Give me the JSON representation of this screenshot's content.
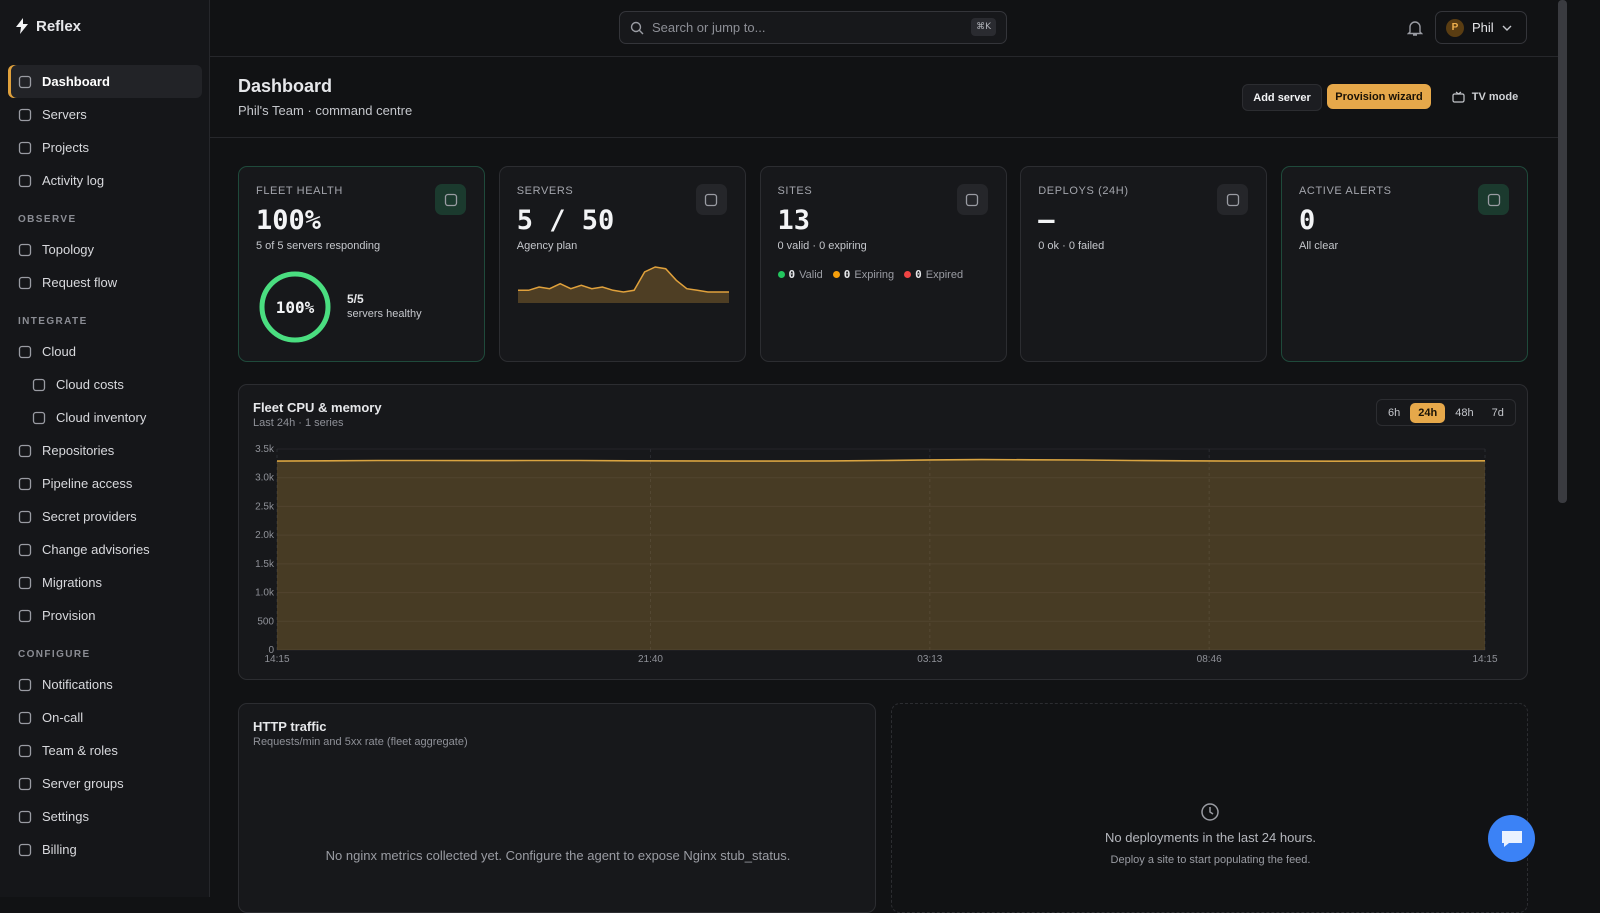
{
  "sidebar": {
    "brand": "Reflex",
    "active_index": 0,
    "main": [
      "Dashboard",
      "Servers",
      "Projects",
      "Activity log"
    ],
    "groups": [
      {
        "title": "OBSERVE",
        "items": [
          {
            "label": "Topology"
          },
          {
            "label": "Request flow"
          }
        ]
      },
      {
        "title": "INTEGRATE",
        "items": [
          {
            "label": "Cloud",
            "children": [
              "Cloud costs",
              "Cloud inventory"
            ]
          },
          {
            "label": "Repositories"
          },
          {
            "label": "Pipeline access"
          },
          {
            "label": "Secret providers"
          },
          {
            "label": "Change advisories"
          },
          {
            "label": "Migrations"
          },
          {
            "label": "Provision"
          }
        ]
      },
      {
        "title": "CONFIGURE",
        "items": [
          {
            "label": "Notifications"
          },
          {
            "label": "On-call"
          },
          {
            "label": "Team & roles"
          },
          {
            "label": "Server groups"
          },
          {
            "label": "Settings"
          },
          {
            "label": "Billing"
          }
        ]
      }
    ]
  },
  "topbar": {
    "search_placeholder": "Search or jump to...",
    "shortcut": "⌘K",
    "user_initial": "P",
    "user_name": "Phil"
  },
  "header": {
    "title": "Dashboard",
    "subtitle": "Phil's Team · command centre",
    "buttons": [
      "Add server",
      "Provision wizard",
      "TV mode"
    ]
  },
  "cards": [
    {
      "label": "FLEET HEALTH",
      "value": "100%",
      "sub": "5 of 5 servers responding",
      "border_color": "#1f4a3b",
      "gauge": {
        "value": 100,
        "value_label": "100%",
        "count": "5/5",
        "caption": "servers healthy",
        "color": "#4ade80"
      }
    },
    {
      "label": "SERVERS",
      "value": "5 / 50",
      "sub": "Agency plan",
      "border_color": "#2c2d31",
      "sparkline": {
        "color": "#e0a13c",
        "values": [
          2,
          2,
          3,
          2.5,
          4,
          2.5,
          3.5,
          2.5,
          3,
          2,
          1.5,
          2,
          7.5,
          9,
          8.5,
          5,
          2.5,
          2,
          1.5,
          1.5,
          1.5
        ]
      }
    },
    {
      "label": "SITES",
      "value": "13",
      "sub": "0 valid · 0 expiring",
      "border_color": "#2c2d31",
      "legend": [
        {
          "count": "0",
          "label": "Valid",
          "color": "#22c55e"
        },
        {
          "count": "0",
          "label": "Expiring",
          "color": "#f59e0b"
        },
        {
          "count": "0",
          "label": "Expired",
          "color": "#ef4444"
        }
      ]
    },
    {
      "label": "DEPLOYS (24H)",
      "value": "—",
      "sub": "0 ok · 0 failed",
      "border_color": "#2c2d31"
    },
    {
      "label": "ACTIVE ALERTS",
      "value": "0",
      "sub": "All clear",
      "border_color": "#1f4a3b"
    }
  ],
  "cpu_panel": {
    "ranges": [
      "6h",
      "24h",
      "48h",
      "7d"
    ],
    "active_range_index": 1
  },
  "chart_data": {
    "type": "area",
    "title": "Fleet CPU & memory",
    "subtitle": "Last 24h · 1 series",
    "color": "#d9a441",
    "x": [
      0,
      1,
      2,
      3,
      4,
      5,
      6,
      7,
      8,
      9,
      10,
      11,
      12,
      13,
      14,
      15,
      16,
      17,
      18,
      19,
      20,
      21,
      22,
      23,
      24
    ],
    "values": [
      3290,
      3295,
      3300,
      3300,
      3298,
      3300,
      3300,
      3295,
      3292,
      3290,
      3290,
      3292,
      3300,
      3310,
      3315,
      3312,
      3308,
      3300,
      3295,
      3290,
      3290,
      3288,
      3290,
      3292,
      3295
    ],
    "xlim": [
      0,
      24
    ],
    "xticks": [
      {
        "value": 0,
        "label": "14:15"
      },
      {
        "value": 7.42,
        "label": "21:40"
      },
      {
        "value": 12.97,
        "label": "03:13"
      },
      {
        "value": 18.52,
        "label": "08:46"
      },
      {
        "value": 24,
        "label": "14:15"
      }
    ],
    "ylim": [
      0,
      3500
    ],
    "yticks": [
      0,
      500,
      {
        "value": 1000,
        "label": "1.0k"
      },
      {
        "value": 1500,
        "label": "1.5k"
      },
      {
        "value": 2000,
        "label": "2.0k"
      },
      {
        "value": 2500,
        "label": "2.5k"
      },
      {
        "value": 3000,
        "label": "3.0k"
      },
      {
        "value": 3500,
        "label": "3.5k"
      }
    ],
    "grid": true
  },
  "http_panel": {
    "title": "HTTP traffic",
    "subtitle": "Requests/min and 5xx rate (fleet aggregate)",
    "empty": "No nginx metrics collected yet. Configure the agent to expose Nginx stub_status."
  },
  "deploy_panel": {
    "empty": "No deployments in the last 24 hours.",
    "hint": "Deploy a site to start populating the feed."
  }
}
